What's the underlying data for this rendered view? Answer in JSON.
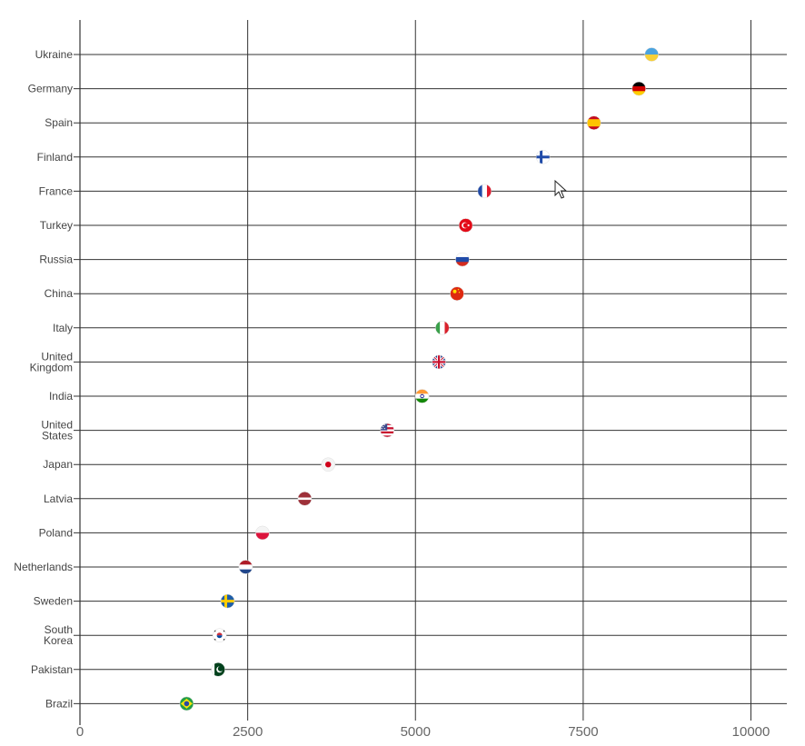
{
  "chart_data": {
    "type": "scatter",
    "title": "",
    "xlabel": "",
    "ylabel": "",
    "xlim": [
      0,
      10500
    ],
    "x_ticks": [
      0,
      2500,
      5000,
      7500,
      10000
    ],
    "x_tick_labels": [
      "0",
      "2500",
      "5000",
      "7500",
      "10000"
    ],
    "grid": true,
    "categories": [
      "Ukraine",
      "Germany",
      "Spain",
      "Finland",
      "France",
      "Turkey",
      "Russia",
      "China",
      "Italy",
      "United Kingdom",
      "India",
      "United States",
      "Japan",
      "Latvia",
      "Poland",
      "Netherlands",
      "Sweden",
      "South Korea",
      "Pakistan",
      "Brazil"
    ],
    "category_label_lines": [
      [
        "Ukraine"
      ],
      [
        "Germany"
      ],
      [
        "Spain"
      ],
      [
        "Finland"
      ],
      [
        "France"
      ],
      [
        "Turkey"
      ],
      [
        "Russia"
      ],
      [
        "China"
      ],
      [
        "Italy"
      ],
      [
        "United",
        "Kingdom"
      ],
      [
        "India"
      ],
      [
        "United",
        "States"
      ],
      [
        "Japan"
      ],
      [
        "Latvia"
      ],
      [
        "Poland"
      ],
      [
        "Netherlands"
      ],
      [
        "Sweden"
      ],
      [
        "South",
        "Korea"
      ],
      [
        "Pakistan"
      ],
      [
        "Brazil"
      ]
    ],
    "values": [
      8520,
      8330,
      7660,
      6900,
      6030,
      5750,
      5700,
      5620,
      5400,
      5350,
      5100,
      4580,
      3700,
      3350,
      2720,
      2470,
      2200,
      2080,
      2060,
      1590
    ],
    "marker_icons": [
      "flag-ukraine-icon",
      "flag-germany-icon",
      "flag-spain-icon",
      "flag-finland-icon",
      "flag-france-icon",
      "flag-turkey-icon",
      "flag-russia-icon",
      "flag-china-icon",
      "flag-italy-icon",
      "flag-united-kingdom-icon",
      "flag-india-icon",
      "flag-united-states-icon",
      "flag-japan-icon",
      "flag-latvia-icon",
      "flag-poland-icon",
      "flag-netherlands-icon",
      "flag-sweden-icon",
      "flag-south-korea-icon",
      "flag-pakistan-icon",
      "flag-brazil-icon"
    ]
  },
  "colors": {
    "grid": "#333333",
    "label": "#444444",
    "tick_label": "#666666"
  },
  "cursor_icon": "mouse-pointer-icon"
}
